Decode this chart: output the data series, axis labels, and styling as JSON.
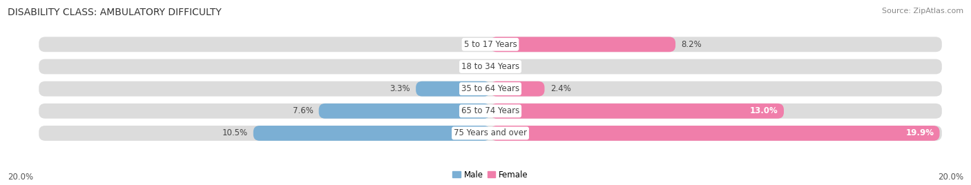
{
  "title": "DISABILITY CLASS: AMBULATORY DIFFICULTY",
  "source": "Source: ZipAtlas.com",
  "categories": [
    "5 to 17 Years",
    "18 to 34 Years",
    "35 to 64 Years",
    "65 to 74 Years",
    "75 Years and over"
  ],
  "male_values": [
    0.0,
    0.0,
    3.3,
    7.6,
    10.5
  ],
  "female_values": [
    8.2,
    0.0,
    2.4,
    13.0,
    19.9
  ],
  "male_color": "#7bafd4",
  "female_color": "#f07eaa",
  "bar_bg_color": "#dcdcdc",
  "axis_max": 20.0,
  "label_fontsize": 8.5,
  "title_fontsize": 10,
  "source_fontsize": 8,
  "category_fontsize": 8.5,
  "bar_height": 0.68,
  "background_color": "#ffffff",
  "female_inside_threshold": 10.0
}
